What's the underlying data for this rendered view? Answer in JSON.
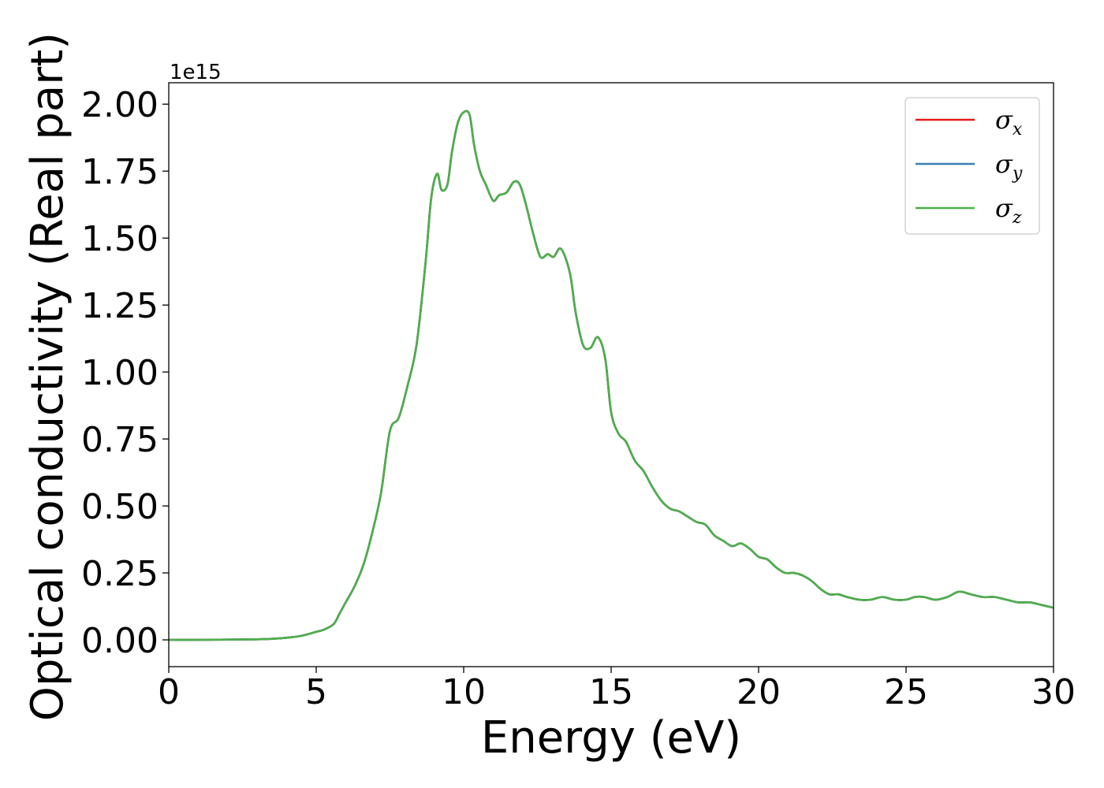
{
  "chart_data": {
    "type": "line",
    "xlabel": "Energy (eV)",
    "ylabel": "Optical conductivity (Real part)",
    "y_offset_text": "1e15",
    "xlim": [
      0,
      30
    ],
    "ylim": [
      -0.1,
      2.08
    ],
    "x_ticks": [
      0,
      5,
      10,
      15,
      20,
      25,
      30
    ],
    "x_tick_labels": [
      "0",
      "5",
      "10",
      "15",
      "20",
      "25",
      "30"
    ],
    "y_ticks": [
      0.0,
      0.25,
      0.5,
      0.75,
      1.0,
      1.25,
      1.5,
      1.75,
      2.0
    ],
    "y_tick_labels": [
      "0.00",
      "0.25",
      "0.50",
      "0.75",
      "1.00",
      "1.25",
      "1.50",
      "1.75",
      "2.00"
    ],
    "grid": false,
    "legend_position": "top-right",
    "x": [
      0,
      1,
      2,
      3,
      3.5,
      4,
      4.5,
      5,
      5.3,
      5.6,
      5.8,
      6,
      6.3,
      6.6,
      6.9,
      7.2,
      7.5,
      7.8,
      8.1,
      8.4,
      8.7,
      8.9,
      9.1,
      9.25,
      9.45,
      9.6,
      9.8,
      10.0,
      10.2,
      10.35,
      10.55,
      10.75,
      11.0,
      11.2,
      11.45,
      11.7,
      11.9,
      12.1,
      12.35,
      12.6,
      12.85,
      13.05,
      13.3,
      13.6,
      13.8,
      14.05,
      14.3,
      14.55,
      14.8,
      15.0,
      15.25,
      15.5,
      15.8,
      16.1,
      16.4,
      16.7,
      17.0,
      17.3,
      17.6,
      17.9,
      18.2,
      18.5,
      18.8,
      19.1,
      19.4,
      19.7,
      20.0,
      20.3,
      20.6,
      20.9,
      21.2,
      21.5,
      21.8,
      22.1,
      22.4,
      22.7,
      23.0,
      23.4,
      23.8,
      24.2,
      24.6,
      25.0,
      25.3,
      25.6,
      26.0,
      26.4,
      26.8,
      27.2,
      27.6,
      28.0,
      28.4,
      28.8,
      29.2,
      29.6,
      30.0
    ],
    "series": [
      {
        "name": "σx",
        "color": "#e41a1c",
        "values": [
          0.0,
          0.0,
          0.001,
          0.002,
          0.004,
          0.008,
          0.015,
          0.03,
          0.04,
          0.06,
          0.1,
          0.14,
          0.2,
          0.28,
          0.4,
          0.55,
          0.78,
          0.83,
          0.95,
          1.1,
          1.4,
          1.65,
          1.74,
          1.68,
          1.7,
          1.82,
          1.93,
          1.97,
          1.96,
          1.85,
          1.75,
          1.7,
          1.64,
          1.66,
          1.67,
          1.71,
          1.7,
          1.63,
          1.52,
          1.43,
          1.44,
          1.43,
          1.46,
          1.37,
          1.22,
          1.1,
          1.09,
          1.13,
          1.05,
          0.85,
          0.77,
          0.74,
          0.67,
          0.63,
          0.57,
          0.52,
          0.49,
          0.48,
          0.46,
          0.44,
          0.43,
          0.39,
          0.37,
          0.35,
          0.36,
          0.34,
          0.31,
          0.3,
          0.27,
          0.25,
          0.25,
          0.24,
          0.22,
          0.19,
          0.17,
          0.17,
          0.16,
          0.15,
          0.15,
          0.16,
          0.15,
          0.15,
          0.16,
          0.16,
          0.15,
          0.16,
          0.18,
          0.17,
          0.16,
          0.16,
          0.15,
          0.14,
          0.14,
          0.13,
          0.12
        ]
      },
      {
        "name": "σy",
        "color": "#377eb8",
        "values": [
          0.0,
          0.0,
          0.001,
          0.002,
          0.004,
          0.008,
          0.015,
          0.03,
          0.04,
          0.06,
          0.1,
          0.14,
          0.2,
          0.28,
          0.4,
          0.55,
          0.78,
          0.83,
          0.95,
          1.1,
          1.4,
          1.65,
          1.74,
          1.68,
          1.7,
          1.82,
          1.93,
          1.97,
          1.96,
          1.85,
          1.75,
          1.7,
          1.64,
          1.66,
          1.67,
          1.71,
          1.7,
          1.63,
          1.52,
          1.43,
          1.44,
          1.43,
          1.46,
          1.37,
          1.22,
          1.1,
          1.09,
          1.13,
          1.05,
          0.85,
          0.77,
          0.74,
          0.67,
          0.63,
          0.57,
          0.52,
          0.49,
          0.48,
          0.46,
          0.44,
          0.43,
          0.39,
          0.37,
          0.35,
          0.36,
          0.34,
          0.31,
          0.3,
          0.27,
          0.25,
          0.25,
          0.24,
          0.22,
          0.19,
          0.17,
          0.17,
          0.16,
          0.15,
          0.15,
          0.16,
          0.15,
          0.15,
          0.16,
          0.16,
          0.15,
          0.16,
          0.18,
          0.17,
          0.16,
          0.16,
          0.15,
          0.14,
          0.14,
          0.13,
          0.12
        ]
      },
      {
        "name": "σz",
        "color": "#4daf4a",
        "values": [
          0.0,
          0.0,
          0.001,
          0.002,
          0.004,
          0.008,
          0.015,
          0.03,
          0.04,
          0.06,
          0.1,
          0.14,
          0.2,
          0.28,
          0.4,
          0.55,
          0.78,
          0.83,
          0.95,
          1.1,
          1.4,
          1.65,
          1.74,
          1.68,
          1.7,
          1.82,
          1.93,
          1.97,
          1.96,
          1.85,
          1.75,
          1.7,
          1.64,
          1.66,
          1.67,
          1.71,
          1.7,
          1.63,
          1.52,
          1.43,
          1.44,
          1.43,
          1.46,
          1.37,
          1.22,
          1.1,
          1.09,
          1.13,
          1.05,
          0.85,
          0.77,
          0.74,
          0.67,
          0.63,
          0.57,
          0.52,
          0.49,
          0.48,
          0.46,
          0.44,
          0.43,
          0.39,
          0.37,
          0.35,
          0.36,
          0.34,
          0.31,
          0.3,
          0.27,
          0.25,
          0.25,
          0.24,
          0.22,
          0.19,
          0.17,
          0.17,
          0.16,
          0.15,
          0.15,
          0.16,
          0.15,
          0.15,
          0.16,
          0.16,
          0.15,
          0.16,
          0.18,
          0.17,
          0.16,
          0.16,
          0.15,
          0.14,
          0.14,
          0.13,
          0.12
        ]
      }
    ],
    "legend": [
      {
        "symbol": "σ",
        "subscript": "x",
        "color": "#e41a1c"
      },
      {
        "symbol": "σ",
        "subscript": "y",
        "color": "#377eb8"
      },
      {
        "symbol": "σ",
        "subscript": "z",
        "color": "#4daf4a"
      }
    ]
  }
}
